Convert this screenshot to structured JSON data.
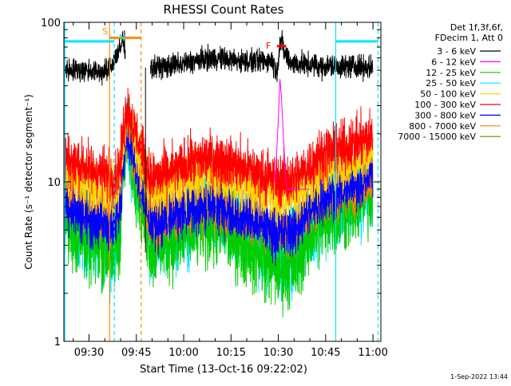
{
  "chart_data": {
    "type": "line",
    "title": "RHESSI Count Rates",
    "xlabel": "Start Time (13-Oct-16 09:22:02)",
    "ylabel": "Count Rate (s⁻¹ detector segment⁻¹)",
    "yscale": "log",
    "ylim": [
      1,
      100
    ],
    "xlim_minutes": [
      22.03,
      122.5
    ],
    "x_unit": "minutes after 09:00 UT (13-Oct-16)",
    "x_ticks": [
      {
        "t": 30,
        "label": "09:30"
      },
      {
        "t": 45,
        "label": "09:45"
      },
      {
        "t": 60,
        "label": "10:00"
      },
      {
        "t": 75,
        "label": "10:15"
      },
      {
        "t": 90,
        "label": "10:30"
      },
      {
        "t": 105,
        "label": "10:45"
      },
      {
        "t": 120,
        "label": "11:00"
      }
    ],
    "y_ticks": [
      {
        "v": 1,
        "label": "1"
      },
      {
        "v": 10,
        "label": "10"
      },
      {
        "v": 100,
        "label": "100"
      }
    ],
    "grid": false,
    "legend_position": "top-right, outside plot",
    "legend_header": [
      "Det 1f,3f,6f,",
      "FDecim 1, Att 0"
    ],
    "series": [
      {
        "name": "3 - 6 keV",
        "color": "#000000",
        "t": [
          22.3,
          26,
          30,
          34,
          36,
          37,
          38.5,
          40,
          40.6,
          41.5
        ],
        "values": [
          51,
          50,
          50,
          49,
          49,
          53,
          61,
          68,
          78,
          70
        ]
      },
      {
        "name": "3 - 6 keV",
        "color": "#000000",
        "t": [
          49.5,
          55,
          60,
          65,
          70,
          75,
          80,
          85,
          88,
          89.5,
          90.5,
          91.2,
          92,
          93,
          94,
          96,
          100,
          104,
          108,
          112,
          116,
          120
        ],
        "values": [
          52,
          53,
          55,
          58,
          60,
          58,
          57,
          57,
          58,
          48,
          75,
          74,
          64,
          59,
          56,
          55,
          54,
          53,
          53,
          53,
          53,
          52
        ]
      },
      {
        "name": "6 - 12 keV",
        "color": "#ff00ff",
        "t": [
          89,
          90,
          90.5,
          91,
          91.8,
          92.5,
          93,
          95,
          100
        ],
        "values": [
          9.5,
          25,
          44,
          34,
          16,
          9.2,
          9.0,
          9.0,
          9.0
        ]
      },
      {
        "name": "12 - 25 keV",
        "color": "#00cc00",
        "t": [
          22.3,
          25,
          28,
          31,
          34,
          36,
          37,
          38.5,
          40,
          41,
          42,
          49.5,
          52,
          56,
          60,
          64,
          68,
          72,
          76,
          80,
          84,
          88,
          90,
          92,
          94,
          96,
          99,
          102,
          106,
          110,
          114,
          118,
          120
        ],
        "values": [
          6.0,
          4.9,
          4.6,
          4.0,
          4.0,
          3.6,
          3.5,
          3.8,
          5.5,
          14,
          20,
          4.0,
          4.1,
          4.4,
          4.7,
          5.2,
          5.4,
          5.2,
          4.6,
          4.1,
          3.6,
          3.2,
          2.8,
          3.0,
          3.0,
          3.2,
          4.3,
          5.3,
          6.2,
          6.6,
          7.2,
          8.2,
          8.8
        ]
      },
      {
        "name": "25 - 50 keV",
        "color": "#00e5ff",
        "t": [
          22.3,
          25,
          28,
          31,
          34,
          36,
          37,
          38.5,
          40,
          41,
          42,
          49.5,
          52,
          56,
          60,
          64,
          68,
          72,
          76,
          80,
          84,
          88,
          90,
          92,
          94,
          96,
          99,
          102,
          106,
          110,
          114,
          118,
          120
        ],
        "values": [
          6.8,
          5.6,
          5.2,
          4.6,
          4.5,
          4.2,
          4.0,
          4.4,
          6.2,
          15,
          21,
          4.7,
          4.8,
          5.0,
          5.5,
          6.0,
          6.2,
          6.0,
          5.4,
          4.9,
          4.3,
          3.8,
          3.5,
          3.7,
          3.8,
          4.0,
          5.0,
          6.1,
          7.0,
          7.4,
          8.0,
          9.0,
          9.6
        ]
      },
      {
        "name": "50 - 100 keV",
        "color": "#ffd400",
        "t": [
          22.3,
          25,
          28,
          31,
          34,
          36,
          37,
          38.5,
          40,
          41,
          42,
          49.5,
          52,
          56,
          60,
          64,
          68,
          72,
          76,
          80,
          84,
          88,
          90,
          92,
          94,
          96,
          99,
          102,
          106,
          110,
          114,
          118,
          120
        ],
        "values": [
          12,
          10.6,
          10,
          9.2,
          9.0,
          8.6,
          8.4,
          9.0,
          11,
          19,
          26,
          8.5,
          8.8,
          9.4,
          10,
          10.8,
          11.2,
          10.8,
          10,
          9.4,
          8.8,
          8.3,
          7.9,
          8.0,
          8.1,
          8.4,
          9.6,
          11,
          12.2,
          12.8,
          13.6,
          15,
          16
        ]
      },
      {
        "name": "100 - 300 keV",
        "color": "#ff0000",
        "t": [
          22.3,
          25,
          28,
          31,
          34,
          36,
          37,
          38.5,
          40,
          41,
          42,
          49.5,
          52,
          56,
          60,
          64,
          68,
          72,
          76,
          80,
          84,
          88,
          90,
          92,
          94,
          96,
          99,
          102,
          106,
          110,
          114,
          118,
          120
        ],
        "values": [
          14.5,
          13.2,
          12.6,
          11.8,
          11.5,
          11,
          10.8,
          11.3,
          13,
          22,
          30,
          10.5,
          10.8,
          11.5,
          12.5,
          13.5,
          14.2,
          13.8,
          12.9,
          12.1,
          11.3,
          10.6,
          10.2,
          10.3,
          10.4,
          10.8,
          12.3,
          14,
          15.5,
          16.2,
          17,
          18.5,
          19.5
        ]
      },
      {
        "name": "300 - 800 keV",
        "color": "#0000ff",
        "t": [
          22.3,
          25,
          28,
          31,
          34,
          36,
          37,
          38.5,
          40,
          41,
          42,
          49.5,
          52,
          56,
          60,
          64,
          68,
          72,
          76,
          80,
          84,
          88,
          90,
          92,
          94,
          96,
          99,
          102,
          106,
          110,
          114,
          118,
          120
        ],
        "values": [
          7.6,
          6.6,
          6.2,
          5.7,
          5.6,
          5.3,
          5.1,
          5.5,
          7.2,
          16,
          22,
          5.5,
          5.6,
          5.9,
          6.4,
          7.0,
          7.3,
          7.0,
          6.4,
          5.9,
          5.4,
          5.0,
          4.7,
          4.8,
          4.9,
          5.2,
          6.3,
          7.5,
          8.5,
          9.0,
          9.7,
          10.8,
          11.5
        ]
      },
      {
        "name": "800 - 7000 keV",
        "color": "#ff7f00",
        "t": [
          22.3,
          25,
          28,
          31,
          34,
          36,
          37,
          38.5,
          40,
          41,
          42,
          49.5,
          52,
          56,
          60,
          64,
          68,
          72,
          76,
          80,
          84,
          88,
          90,
          92,
          94,
          96,
          99,
          102,
          106,
          110,
          114,
          118,
          120
        ],
        "values": [
          8.3,
          7.4,
          7.0,
          6.5,
          6.3,
          6.0,
          5.8,
          6.2,
          7.8,
          16,
          22,
          5.6,
          5.8,
          6.1,
          6.5,
          6.9,
          7.1,
          6.9,
          6.5,
          6.0,
          5.6,
          5.2,
          5.0,
          5.1,
          5.2,
          5.4,
          6.3,
          7.3,
          8.1,
          8.6,
          9.1,
          9.8,
          10.2
        ]
      },
      {
        "name": "7000 - 15000 keV",
        "color": "#808000",
        "t": [],
        "values": []
      }
    ],
    "annotations": [
      {
        "text": "S",
        "color": "#ff8c00",
        "t": 36.5,
        "span_t": [
          36.5,
          46.5
        ],
        "level": 80
      },
      {
        "text": "N",
        "color": "#00e5ff",
        "t": 38.2
      },
      {
        "text": "F",
        "color": "#ff0000",
        "t": 89.6,
        "span_t": [
          89.6,
          92.5
        ],
        "level": 71
      }
    ],
    "night_bars": [
      {
        "color": "#00e5ff",
        "t": [
          22.3,
          38.0
        ],
        "level": 76
      },
      {
        "color": "#00e5ff",
        "t": [
          108.2,
          121.6
        ],
        "level": 76
      }
    ],
    "vertical_markers": [
      {
        "t": 22.3,
        "color": "#00e5ff",
        "style": "solid"
      },
      {
        "t": 38.0,
        "color": "#00e5ff",
        "style": "dashed"
      },
      {
        "t": 36.5,
        "color": "#ff8c00",
        "style": "solid"
      },
      {
        "t": 46.5,
        "color": "#ff8c00",
        "style": "dashed"
      },
      {
        "t": 108.2,
        "color": "#00e5ff",
        "style": "solid"
      },
      {
        "t": 121.6,
        "color": "#00e5ff",
        "style": "dashed"
      }
    ],
    "footer_timestamp": "1-Sep-2022 13:44"
  }
}
